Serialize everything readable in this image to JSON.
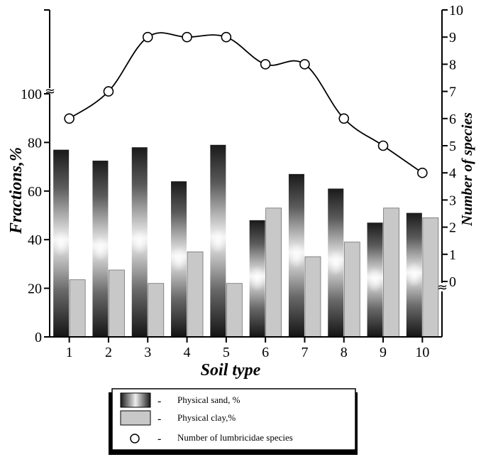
{
  "chart_data": {
    "type": "bar",
    "title": "",
    "xlabel": "Soil type",
    "ylabel_left": "Fractions,%",
    "ylabel_right": "Number of species",
    "categories": [
      "1",
      "2",
      "3",
      "4",
      "5",
      "6",
      "7",
      "8",
      "9",
      "10"
    ],
    "series": [
      {
        "name": "Physical sand, %",
        "kind": "bar",
        "axis": "left",
        "values": [
          77,
          72.5,
          78,
          64,
          79,
          48,
          67,
          61,
          47,
          51
        ]
      },
      {
        "name": "Physical clay,%",
        "kind": "bar",
        "axis": "left",
        "values": [
          23.5,
          27.5,
          22,
          35,
          22,
          53,
          33,
          39,
          53,
          49
        ],
        "color": "#c8c8c8"
      },
      {
        "name": "Number of lumbricidae species",
        "kind": "line",
        "axis": "right",
        "marker": "open-circle",
        "values": [
          6,
          7,
          9,
          9,
          9,
          8,
          8,
          6,
          5,
          4
        ]
      }
    ],
    "left_axis": {
      "ylim": [
        0,
        100
      ],
      "ticks": [
        "0",
        "20",
        "40",
        "60",
        "80",
        "100"
      ],
      "break_symbol": "≈"
    },
    "right_axis": {
      "ylim": [
        0,
        10
      ],
      "ticks": [
        "0",
        "1",
        "2",
        "3",
        "4",
        "5",
        "6",
        "7",
        "8",
        "9",
        "10"
      ],
      "break_symbol": "≈"
    },
    "grid": false,
    "legend_placement": "bottom-center"
  }
}
